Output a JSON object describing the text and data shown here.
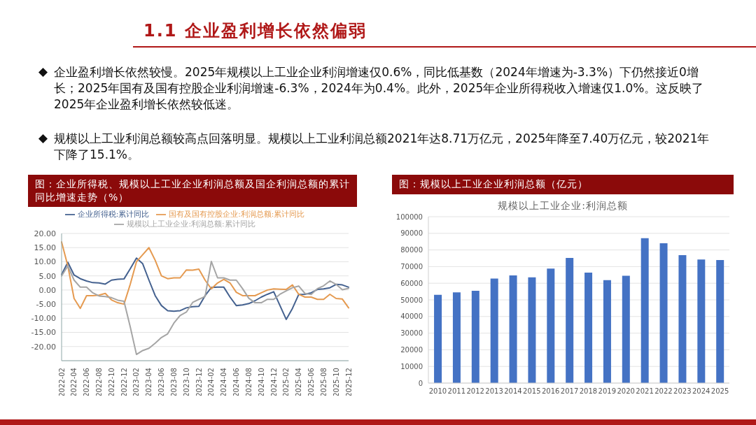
{
  "chart_data": [
    {
      "type": "other",
      "title": "1.1 企业盈利增长依然偏弱",
      "annotations": [
        "企业盈利增长依然较慢。2025年规模以上工业企业利润增速仅0.6%，同比低基数（2024年增速为-3.3%）下仍然接近0增长；2025年国有及国有控股企业利润增速-6.3%，2024年为0.4%。此外，2025年企业所得税收入增速仅1.0%。这反映了2025年企业盈利增长依然较低迷。",
        "规模以上工业利润总额较高点回落明显。规模以上工业利润总额2021年达8.71万亿元，2025年降至7.40万亿元，较2021年下降了15.1%。"
      ]
    },
    {
      "type": "line",
      "title": "图：企业所得税、规模以上工业企业利润总额及国企利润总额的累计同比增速走势（%）",
      "categories": [
        "2022-02",
        null,
        "2022-04",
        null,
        "2022-06",
        null,
        "2022-08",
        null,
        "2022-10",
        null,
        "2022-12",
        null,
        "2023-02",
        null,
        "2023-04",
        null,
        "2023-06",
        null,
        "2023-08",
        null,
        "2023-10",
        null,
        "2023-12",
        null,
        "2024-02",
        null,
        "2024-04",
        null,
        "2024-06",
        null,
        "2024-08",
        null,
        "2024-10",
        null,
        "2024-12",
        null,
        "2025-02",
        null,
        "2025-04",
        null,
        "2025-06",
        null,
        "2025-08",
        null,
        "2025-10",
        null,
        "2025-12"
      ],
      "series": [
        {
          "name": "企业所得税:累计同比",
          "color": "#44618f",
          "values": [
            5.5,
            9.8,
            5.3,
            4.0,
            3.2,
            2.6,
            2.5,
            2.1,
            3.5,
            3.8,
            3.9,
            7.5,
            11.3,
            9.3,
            3.5,
            -2.0,
            -5.5,
            -7.3,
            -7.5,
            -7.3,
            -6.3,
            -5.9,
            -5.8,
            -2.0,
            0.9,
            1.0,
            1.0,
            -2.5,
            -5.5,
            -5.3,
            -4.8,
            -3.8,
            -2.5,
            -1.5,
            -0.6,
            -5.5,
            -10.4,
            -6.5,
            -1.6,
            -1.5,
            -1.0,
            0.2,
            0.4,
            0.8,
            2.0,
            1.8,
            1.0
          ]
        },
        {
          "name": "国有及国有控股企业:利润总额:累计同比",
          "color": "#e59a50",
          "values": [
            17.0,
            8.5,
            -3.0,
            -6.5,
            -2.0,
            -2.0,
            -1.8,
            -1.2,
            -3.5,
            -4.5,
            -5.0,
            2.0,
            10.0,
            12.5,
            15.0,
            10.5,
            5.0,
            4.0,
            4.3,
            4.3,
            7.1,
            7.0,
            7.4,
            3.5,
            0.4,
            2.5,
            3.8,
            2.5,
            -0.8,
            -2.0,
            -2.0,
            -2.0,
            -1.0,
            0.0,
            0.4,
            0.3,
            0.2,
            1.8,
            -1.5,
            -2.5,
            -2.5,
            -3.3,
            -3.3,
            -1.5,
            -3.0,
            -3.2,
            -6.3
          ]
        },
        {
          "name": "规模以上工业企业:利润总额:累计同比",
          "color": "#a5a5a5",
          "values": [
            5.0,
            8.5,
            3.5,
            1.0,
            1.0,
            -1.0,
            -2.1,
            -2.3,
            -2.7,
            -3.6,
            -4.0,
            -13.0,
            -22.8,
            -21.4,
            -20.6,
            -18.8,
            -16.8,
            -15.5,
            -11.7,
            -9.0,
            -7.8,
            -4.4,
            -3.3,
            -2.3,
            10.1,
            4.3,
            4.3,
            3.5,
            3.5,
            0.5,
            -2.9,
            -4.5,
            -4.5,
            -3.3,
            -3.3,
            -1.5,
            -0.3,
            0.8,
            1.4,
            -1.2,
            -1.6,
            0.5,
            1.5,
            3.2,
            2.0,
            0.1,
            0.6
          ]
        }
      ],
      "ylim": [
        -25,
        20
      ],
      "yticks": [
        {
          "value": 20,
          "label": "20.00"
        },
        {
          "value": 15,
          "label": "15.00"
        },
        {
          "value": 10,
          "label": "10.00"
        },
        {
          "value": 5,
          "label": "5.00"
        },
        {
          "value": 0,
          "label": "0.00"
        },
        {
          "value": -5,
          "label": "-5.00"
        },
        {
          "value": -10,
          "label": "-10.00"
        },
        {
          "value": -15,
          "label": "-15.00"
        },
        {
          "value": -20,
          "label": "-20.00"
        }
      ],
      "grid": "y",
      "legend": "top",
      "marker": "none",
      "line_style": "solid"
    },
    {
      "type": "bar",
      "title": "图：规模以上工业企业利润总额（亿元）",
      "subtitle": "规模以上工业企业:利润总额",
      "categories": [
        "2010",
        "2011",
        "2012",
        "2013",
        "2014",
        "2015",
        "2016",
        "2017",
        "2018",
        "2019",
        "2020",
        "2021",
        "2022",
        "2023",
        "2024",
        "2025"
      ],
      "values": [
        53000,
        54500,
        55500,
        62800,
        64700,
        63500,
        68800,
        75200,
        66400,
        61900,
        64500,
        87100,
        84000,
        76900,
        74300,
        74000
      ],
      "color": "#4472c4",
      "ylim": [
        0,
        100000
      ],
      "yticks": [
        0,
        10000,
        20000,
        30000,
        40000,
        50000,
        60000,
        70000,
        80000,
        90000,
        100000
      ],
      "grid": "y"
    }
  ]
}
